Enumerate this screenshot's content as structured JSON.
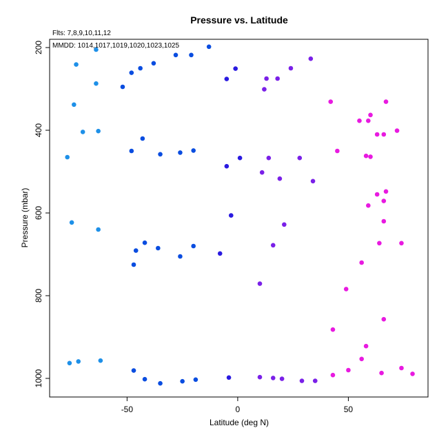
{
  "chart_data": {
    "type": "scatter",
    "title": "Pressure vs. Latitude",
    "subtitle_fits": "Flts: 7,8,9,10,11,12",
    "subtitle_mmdd": "MMDD: 1014,1017,1019,1020,1023,1025",
    "xlabel": "Latitude (deg N)",
    "ylabel": "Pressure (mbar)",
    "xlim": [
      -85,
      86
    ],
    "ylim": [
      1045,
      180
    ],
    "y_reversed": true,
    "xticks": [
      -50,
      0,
      50
    ],
    "yticks": [
      200,
      400,
      600,
      800,
      1000
    ],
    "grid": false,
    "points": [
      {
        "x": -64,
        "y": 205,
        "color": "#1e90e8"
      },
      {
        "x": -73,
        "y": 241,
        "color": "#1e90e8"
      },
      {
        "x": -64,
        "y": 287,
        "color": "#1e90e8"
      },
      {
        "x": -74,
        "y": 338,
        "color": "#1e90e8"
      },
      {
        "x": -70,
        "y": 404,
        "color": "#1e90e8"
      },
      {
        "x": -63,
        "y": 402,
        "color": "#1e90e8"
      },
      {
        "x": -77,
        "y": 465,
        "color": "#1e90e8"
      },
      {
        "x": -75,
        "y": 623,
        "color": "#1e90e8"
      },
      {
        "x": -63,
        "y": 640,
        "color": "#1e90e8"
      },
      {
        "x": -76,
        "y": 963,
        "color": "#1e90e8"
      },
      {
        "x": -72,
        "y": 959,
        "color": "#1e90e8"
      },
      {
        "x": -62,
        "y": 957,
        "color": "#1e90e8"
      },
      {
        "x": -13,
        "y": 198,
        "color": "#0a4de0"
      },
      {
        "x": -21,
        "y": 218,
        "color": "#0a4de0"
      },
      {
        "x": -28,
        "y": 218,
        "color": "#0a4de0"
      },
      {
        "x": -38,
        "y": 238,
        "color": "#0a4de0"
      },
      {
        "x": -44,
        "y": 250,
        "color": "#0a4de0"
      },
      {
        "x": -48,
        "y": 261,
        "color": "#0a4de0"
      },
      {
        "x": -52,
        "y": 295,
        "color": "#0a4de0"
      },
      {
        "x": -43,
        "y": 420,
        "color": "#0a4de0"
      },
      {
        "x": -48,
        "y": 450,
        "color": "#0a4de0"
      },
      {
        "x": -35,
        "y": 458,
        "color": "#0a4de0"
      },
      {
        "x": -26,
        "y": 454,
        "color": "#0a4de0"
      },
      {
        "x": -20,
        "y": 449,
        "color": "#0a4de0"
      },
      {
        "x": -42,
        "y": 672,
        "color": "#0a4de0"
      },
      {
        "x": -46,
        "y": 691,
        "color": "#0a4de0"
      },
      {
        "x": -36,
        "y": 685,
        "color": "#0a4de0"
      },
      {
        "x": -20,
        "y": 680,
        "color": "#0a4de0"
      },
      {
        "x": -47,
        "y": 725,
        "color": "#0a4de0"
      },
      {
        "x": -26,
        "y": 705,
        "color": "#0a4de0"
      },
      {
        "x": -47,
        "y": 981,
        "color": "#0a4de0"
      },
      {
        "x": -42,
        "y": 1002,
        "color": "#0a4de0"
      },
      {
        "x": -35,
        "y": 1012,
        "color": "#0a4de0"
      },
      {
        "x": -25,
        "y": 1007,
        "color": "#0a4de0"
      },
      {
        "x": -19,
        "y": 1003,
        "color": "#0a4de0"
      },
      {
        "x": -5,
        "y": 276,
        "color": "#2a1ae0"
      },
      {
        "x": -1,
        "y": 251,
        "color": "#2a1ae0"
      },
      {
        "x": -5,
        "y": 487,
        "color": "#2a1ae0"
      },
      {
        "x": 1,
        "y": 467,
        "color": "#2a1ae0"
      },
      {
        "x": -3,
        "y": 606,
        "color": "#2a1ae0"
      },
      {
        "x": -8,
        "y": 698,
        "color": "#2a1ae0"
      },
      {
        "x": -4,
        "y": 998,
        "color": "#2a1ae0"
      },
      {
        "x": 13,
        "y": 275,
        "color": "#7a20e8"
      },
      {
        "x": 18,
        "y": 275,
        "color": "#7a20e8"
      },
      {
        "x": 12,
        "y": 301,
        "color": "#7a20e8"
      },
      {
        "x": 24,
        "y": 250,
        "color": "#7a20e8"
      },
      {
        "x": 33,
        "y": 227,
        "color": "#7a20e8"
      },
      {
        "x": 14,
        "y": 467,
        "color": "#7a20e8"
      },
      {
        "x": 28,
        "y": 467,
        "color": "#7a20e8"
      },
      {
        "x": 11,
        "y": 502,
        "color": "#7a20e8"
      },
      {
        "x": 19,
        "y": 517,
        "color": "#7a20e8"
      },
      {
        "x": 34,
        "y": 523,
        "color": "#7a20e8"
      },
      {
        "x": 21,
        "y": 628,
        "color": "#7a20e8"
      },
      {
        "x": 16,
        "y": 678,
        "color": "#7a20e8"
      },
      {
        "x": 10,
        "y": 771,
        "color": "#7a20e8"
      },
      {
        "x": 10,
        "y": 997,
        "color": "#7a20e8"
      },
      {
        "x": 16,
        "y": 999,
        "color": "#7a20e8"
      },
      {
        "x": 20,
        "y": 1001,
        "color": "#7a20e8"
      },
      {
        "x": 29,
        "y": 1006,
        "color": "#7a20e8"
      },
      {
        "x": 35,
        "y": 1006,
        "color": "#7a20e8"
      },
      {
        "x": 42,
        "y": 331,
        "color": "#e81ae0"
      },
      {
        "x": 67,
        "y": 331,
        "color": "#e81ae0"
      },
      {
        "x": 60,
        "y": 363,
        "color": "#e81ae0"
      },
      {
        "x": 55,
        "y": 377,
        "color": "#e81ae0"
      },
      {
        "x": 59,
        "y": 377,
        "color": "#e81ae0"
      },
      {
        "x": 72,
        "y": 401,
        "color": "#e81ae0"
      },
      {
        "x": 63,
        "y": 410,
        "color": "#e81ae0"
      },
      {
        "x": 66,
        "y": 410,
        "color": "#e81ae0"
      },
      {
        "x": 45,
        "y": 450,
        "color": "#e81ae0"
      },
      {
        "x": 58,
        "y": 462,
        "color": "#e81ae0"
      },
      {
        "x": 60,
        "y": 464,
        "color": "#e81ae0"
      },
      {
        "x": 67,
        "y": 548,
        "color": "#e81ae0"
      },
      {
        "x": 63,
        "y": 555,
        "color": "#e81ae0"
      },
      {
        "x": 66,
        "y": 571,
        "color": "#e81ae0"
      },
      {
        "x": 59,
        "y": 582,
        "color": "#e81ae0"
      },
      {
        "x": 66,
        "y": 620,
        "color": "#e81ae0"
      },
      {
        "x": 64,
        "y": 673,
        "color": "#e81ae0"
      },
      {
        "x": 74,
        "y": 673,
        "color": "#e81ae0"
      },
      {
        "x": 56,
        "y": 720,
        "color": "#e81ae0"
      },
      {
        "x": 49,
        "y": 784,
        "color": "#e81ae0"
      },
      {
        "x": 66,
        "y": 857,
        "color": "#e81ae0"
      },
      {
        "x": 43,
        "y": 882,
        "color": "#e81ae0"
      },
      {
        "x": 58,
        "y": 922,
        "color": "#e81ae0"
      },
      {
        "x": 56,
        "y": 953,
        "color": "#e81ae0"
      },
      {
        "x": 74,
        "y": 975,
        "color": "#e81ae0"
      },
      {
        "x": 50,
        "y": 980,
        "color": "#e81ae0"
      },
      {
        "x": 43,
        "y": 992,
        "color": "#e81ae0"
      },
      {
        "x": 65,
        "y": 987,
        "color": "#e81ae0"
      },
      {
        "x": 79,
        "y": 989,
        "color": "#e81ae0"
      }
    ]
  }
}
